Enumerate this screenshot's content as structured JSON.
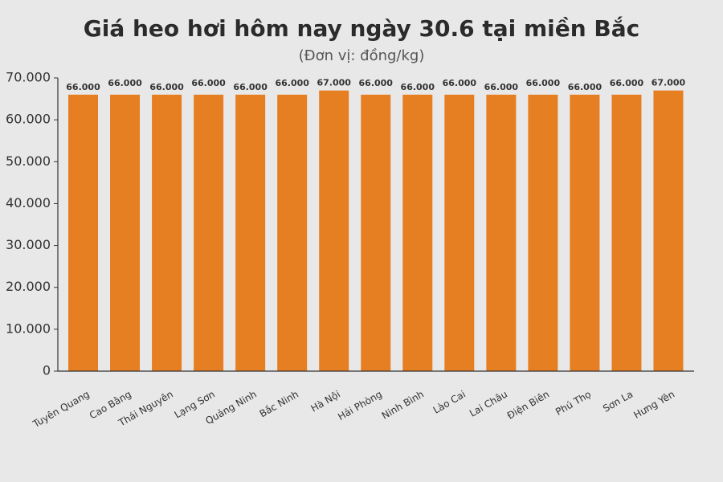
{
  "chart_data": {
    "type": "bar",
    "title": "Giá heo hơi hôm nay ngày 30.6 tại miền Bắc",
    "subtitle": "(Đơn vị: đồng/kg)",
    "categories": [
      "Tuyên Quang",
      "Cao Bằng",
      "Thái Nguyên",
      "Lạng Sơn",
      "Quảng Ninh",
      "Bắc Ninh",
      "Hà Nội",
      "Hải Phòng",
      "Ninh Bình",
      "Lào Cai",
      "Lai Châu",
      "Điện Biên",
      "Phú Thọ",
      "Sơn La",
      "Hưng Yên"
    ],
    "values": [
      66000,
      66000,
      66000,
      66000,
      66000,
      66000,
      67000,
      66000,
      66000,
      66000,
      66000,
      66000,
      66000,
      66000,
      67000
    ],
    "value_labels": [
      "66.000",
      "66.000",
      "66.000",
      "66.000",
      "66.000",
      "66.000",
      "67.000",
      "66.000",
      "66.000",
      "66.000",
      "66.000",
      "66.000",
      "66.000",
      "66.000",
      "67.000"
    ],
    "color": "#e67e22",
    "ylim": [
      0,
      70000
    ],
    "yticks": [
      0,
      {
        "value": 10000,
        "label": "10.000"
      },
      {
        "value": 20000,
        "label": "20.000"
      },
      {
        "value": 30000,
        "label": "30.000"
      },
      {
        "value": 40000,
        "label": "40.000"
      },
      {
        "value": 50000,
        "label": "50.000"
      },
      {
        "value": 60000,
        "label": "60.000"
      },
      {
        "value": 70000,
        "label": "70.000"
      }
    ],
    "grid": false
  }
}
